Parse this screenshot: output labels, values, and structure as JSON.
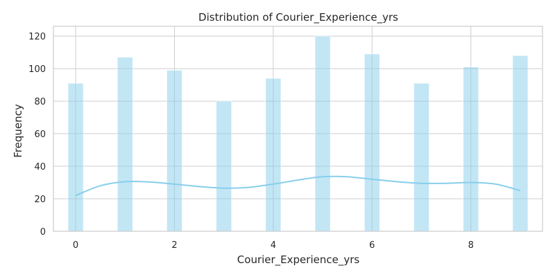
{
  "chart_data": {
    "type": "histogram",
    "title": "Distribution of Courier_Experience_yrs",
    "xlabel": "Courier_Experience_yrs",
    "ylabel": "Frequency",
    "xlim": [
      -0.45,
      9.45
    ],
    "ylim": [
      0,
      126
    ],
    "grid": true,
    "legend": "none",
    "colors": {
      "bar": "#87CEEB",
      "kde": "#87CEEB",
      "grid": "#cccccc",
      "frame": "#cccccc"
    },
    "xticks": [
      "0",
      "2",
      "4",
      "6",
      "8"
    ],
    "xtick_values": [
      0,
      2,
      4,
      6,
      8
    ],
    "yticks": [
      "0",
      "20",
      "40",
      "60",
      "80",
      "100",
      "120"
    ],
    "ytick_values": [
      0,
      20,
      40,
      60,
      80,
      100,
      120
    ],
    "bars": [
      {
        "x": 0,
        "value": 91
      },
      {
        "x": 1,
        "value": 107
      },
      {
        "x": 2,
        "value": 99
      },
      {
        "x": 3,
        "value": 80
      },
      {
        "x": 4,
        "value": 94
      },
      {
        "x": 5,
        "value": 120
      },
      {
        "x": 6,
        "value": 109
      },
      {
        "x": 7,
        "value": 91
      },
      {
        "x": 8,
        "value": 101
      },
      {
        "x": 9,
        "value": 108
      }
    ],
    "kde": {
      "x": [
        0,
        0.5,
        1,
        1.5,
        2,
        2.5,
        3,
        3.5,
        4,
        4.5,
        5,
        5.5,
        6,
        6.5,
        7,
        7.5,
        8,
        8.5,
        9
      ],
      "y": [
        22,
        28,
        30.5,
        30.3,
        29,
        27.5,
        26.5,
        27,
        29,
        31.5,
        33.5,
        33.5,
        32,
        30.5,
        29.5,
        29.5,
        30,
        29,
        25
      ]
    }
  }
}
